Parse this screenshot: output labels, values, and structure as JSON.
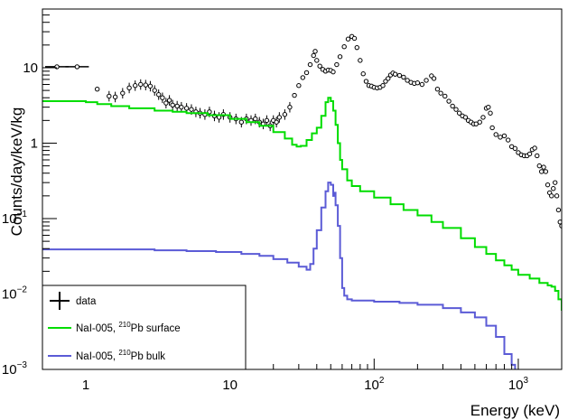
{
  "chart_data": {
    "type": "line",
    "title": "",
    "xlabel": "Energy (keV)",
    "ylabel": "Counts/day/keV/kg",
    "x_scale": "log",
    "y_scale": "log",
    "xlim": [
      0.5,
      2000
    ],
    "ylim": [
      0.001,
      60
    ],
    "x_ticks": [
      {
        "value": 1,
        "base": "1",
        "exp": ""
      },
      {
        "value": 10,
        "base": "10",
        "exp": ""
      },
      {
        "value": 100,
        "base": "10",
        "exp": "2"
      },
      {
        "value": 1000,
        "base": "10",
        "exp": "3"
      }
    ],
    "y_ticks": [
      {
        "value": 0.001,
        "base": "10",
        "exp": "−3"
      },
      {
        "value": 0.01,
        "base": "10",
        "exp": "−2"
      },
      {
        "value": 0.1,
        "base": "10",
        "exp": "−1"
      },
      {
        "value": 1,
        "base": "1",
        "exp": ""
      },
      {
        "value": 10,
        "base": "10",
        "exp": ""
      }
    ],
    "grid": false,
    "legend_position": "bottom-left",
    "legend": [
      {
        "key": "data",
        "pre": "data",
        "sup": "",
        "post": ""
      },
      {
        "key": "surface",
        "pre": "NaI-005, ",
        "sup": "210",
        "post": "Pb surface"
      },
      {
        "key": "bulk",
        "pre": "NaI-005, ",
        "sup": "210",
        "post": "Pb bulk"
      }
    ],
    "series": [
      {
        "key": "data",
        "style": "markers",
        "color": "#000000",
        "points": [
          [
            0.63,
            10.3
          ],
          [
            0.87,
            10.3
          ],
          [
            1.2,
            5.2
          ],
          [
            1.45,
            4.2
          ],
          [
            1.6,
            4.1
          ],
          [
            1.8,
            4.6
          ],
          [
            2.0,
            5.4
          ],
          [
            2.2,
            5.8
          ],
          [
            2.4,
            6.0
          ],
          [
            2.6,
            5.9
          ],
          [
            2.8,
            5.7
          ],
          [
            3.0,
            5.0
          ],
          [
            3.2,
            4.4
          ],
          [
            3.4,
            4.0
          ],
          [
            3.6,
            3.4
          ],
          [
            3.8,
            3.7
          ],
          [
            4.0,
            3.2
          ],
          [
            4.3,
            3.1
          ],
          [
            4.6,
            3.0
          ],
          [
            5.0,
            2.9
          ],
          [
            5.4,
            2.8
          ],
          [
            5.8,
            2.6
          ],
          [
            6.2,
            2.5
          ],
          [
            6.7,
            2.4
          ],
          [
            7.2,
            2.6
          ],
          [
            7.8,
            2.3
          ],
          [
            8.4,
            2.2
          ],
          [
            9,
            2.4
          ],
          [
            10,
            2.2
          ],
          [
            11,
            2.1
          ],
          [
            12,
            1.9
          ],
          [
            13,
            2.1
          ],
          [
            14,
            2.0
          ],
          [
            15,
            2.1
          ],
          [
            16,
            1.9
          ],
          [
            17,
            1.8
          ],
          [
            18,
            2.0
          ],
          [
            19,
            1.7
          ],
          [
            20,
            2.0
          ],
          [
            21,
            1.9
          ],
          [
            22,
            2.2
          ],
          [
            24,
            2.4
          ],
          [
            26,
            3.0
          ],
          [
            28,
            4.3
          ],
          [
            30,
            5.8
          ],
          [
            32,
            7.4
          ],
          [
            34,
            8.6
          ],
          [
            36,
            11.0
          ],
          [
            38,
            14.5
          ],
          [
            39,
            16.5
          ],
          [
            40,
            12.5
          ],
          [
            42,
            10.5
          ],
          [
            44,
            9.5
          ],
          [
            46,
            9.0
          ],
          [
            48,
            9.3
          ],
          [
            50,
            9.2
          ],
          [
            52,
            8.8
          ],
          [
            55,
            11.0
          ],
          [
            58,
            14.0
          ],
          [
            62,
            19.0
          ],
          [
            66,
            24.0
          ],
          [
            70,
            26.0
          ],
          [
            73,
            24.5
          ],
          [
            76,
            18.5
          ],
          [
            80,
            12.5
          ],
          [
            84,
            8.3
          ],
          [
            88,
            6.6
          ],
          [
            92,
            5.8
          ],
          [
            96,
            5.7
          ],
          [
            100,
            5.5
          ],
          [
            105,
            5.4
          ],
          [
            110,
            5.5
          ],
          [
            115,
            5.8
          ],
          [
            120,
            6.6
          ],
          [
            125,
            7.2
          ],
          [
            130,
            8.0
          ],
          [
            135,
            8.5
          ],
          [
            140,
            8.2
          ],
          [
            150,
            7.9
          ],
          [
            160,
            7.5
          ],
          [
            170,
            6.8
          ],
          [
            180,
            6.4
          ],
          [
            190,
            6.2
          ],
          [
            200,
            6.3
          ],
          [
            215,
            6.0
          ],
          [
            230,
            6.8
          ],
          [
            250,
            7.8
          ],
          [
            260,
            7.2
          ],
          [
            275,
            5.2
          ],
          [
            290,
            4.6
          ],
          [
            310,
            4.2
          ],
          [
            330,
            3.6
          ],
          [
            350,
            3.1
          ],
          [
            370,
            2.8
          ],
          [
            390,
            2.5
          ],
          [
            410,
            2.3
          ],
          [
            430,
            2.2
          ],
          [
            450,
            2.0
          ],
          [
            470,
            1.9
          ],
          [
            490,
            1.8
          ],
          [
            510,
            1.8
          ],
          [
            540,
            1.9
          ],
          [
            570,
            2.2
          ],
          [
            600,
            2.9
          ],
          [
            620,
            3.0
          ],
          [
            640,
            2.5
          ],
          [
            660,
            1.6
          ],
          [
            700,
            1.3
          ],
          [
            750,
            1.2
          ],
          [
            800,
            1.25
          ],
          [
            850,
            1.1
          ],
          [
            900,
            0.9
          ],
          [
            950,
            0.85
          ],
          [
            1000,
            0.75
          ],
          [
            1050,
            0.7
          ],
          [
            1100,
            0.68
          ],
          [
            1150,
            0.68
          ],
          [
            1200,
            0.72
          ],
          [
            1250,
            0.82
          ],
          [
            1300,
            0.86
          ],
          [
            1350,
            0.68
          ],
          [
            1400,
            0.5
          ],
          [
            1450,
            0.42
          ],
          [
            1500,
            0.48
          ],
          [
            1550,
            0.42
          ],
          [
            1600,
            0.28
          ],
          [
            1650,
            0.22
          ],
          [
            1700,
            0.2
          ],
          [
            1750,
            0.25
          ],
          [
            1800,
            0.3
          ],
          [
            1850,
            0.2
          ],
          [
            1900,
            0.13
          ],
          [
            1950,
            0.09
          ],
          [
            2000,
            0.08
          ]
        ]
      },
      {
        "key": "surface",
        "style": "step",
        "color": "#00dd00",
        "points": [
          [
            0.5,
            3.6
          ],
          [
            0.8,
            3.6
          ],
          [
            1.0,
            3.5
          ],
          [
            1.2,
            3.3
          ],
          [
            1.5,
            3.1
          ],
          [
            2,
            2.9
          ],
          [
            3,
            2.7
          ],
          [
            4,
            2.6
          ],
          [
            5,
            2.5
          ],
          [
            7,
            2.35
          ],
          [
            10,
            2.1
          ],
          [
            13,
            1.9
          ],
          [
            16,
            1.7
          ],
          [
            20,
            1.4
          ],
          [
            24,
            1.15
          ],
          [
            27,
            0.95
          ],
          [
            29,
            0.9
          ],
          [
            31,
            0.92
          ],
          [
            34,
            1.1
          ],
          [
            37,
            1.35
          ],
          [
            40,
            1.6
          ],
          [
            43,
            2.3
          ],
          [
            46,
            3.5
          ],
          [
            48,
            4.0
          ],
          [
            50,
            3.6
          ],
          [
            52,
            2.7
          ],
          [
            54,
            1.75
          ],
          [
            56,
            1.0
          ],
          [
            58,
            0.6
          ],
          [
            60,
            0.45
          ],
          [
            65,
            0.32
          ],
          [
            70,
            0.27
          ],
          [
            80,
            0.23
          ],
          [
            100,
            0.19
          ],
          [
            130,
            0.155
          ],
          [
            160,
            0.13
          ],
          [
            200,
            0.11
          ],
          [
            250,
            0.09
          ],
          [
            300,
            0.075
          ],
          [
            400,
            0.055
          ],
          [
            500,
            0.042
          ],
          [
            600,
            0.034
          ],
          [
            700,
            0.028
          ],
          [
            800,
            0.024
          ],
          [
            900,
            0.021
          ],
          [
            1000,
            0.018
          ],
          [
            1200,
            0.016
          ],
          [
            1400,
            0.014
          ],
          [
            1600,
            0.013
          ],
          [
            1700,
            0.0125
          ],
          [
            1800,
            0.011
          ],
          [
            1900,
            0.0085
          ],
          [
            2000,
            0.006
          ]
        ]
      },
      {
        "key": "bulk",
        "style": "step",
        "color": "#5b5bd6",
        "points": [
          [
            0.5,
            0.039
          ],
          [
            0.8,
            0.039
          ],
          [
            1,
            0.039
          ],
          [
            2,
            0.039
          ],
          [
            3,
            0.038
          ],
          [
            5,
            0.037
          ],
          [
            8,
            0.036
          ],
          [
            12,
            0.034
          ],
          [
            16,
            0.032
          ],
          [
            20,
            0.029
          ],
          [
            25,
            0.026
          ],
          [
            30,
            0.023
          ],
          [
            34,
            0.021
          ],
          [
            36,
            0.025
          ],
          [
            38,
            0.04
          ],
          [
            40,
            0.07
          ],
          [
            43,
            0.14
          ],
          [
            46,
            0.23
          ],
          [
            48,
            0.3
          ],
          [
            50,
            0.28
          ],
          [
            52,
            0.2
          ],
          [
            53,
            0.22
          ],
          [
            54,
            0.15
          ],
          [
            56,
            0.08
          ],
          [
            58,
            0.03
          ],
          [
            60,
            0.012
          ],
          [
            62,
            0.0095
          ],
          [
            65,
            0.0085
          ],
          [
            70,
            0.0082
          ],
          [
            80,
            0.0082
          ],
          [
            100,
            0.0079
          ],
          [
            150,
            0.0076
          ],
          [
            200,
            0.0072
          ],
          [
            300,
            0.0065
          ],
          [
            400,
            0.0057
          ],
          [
            500,
            0.0049
          ],
          [
            600,
            0.0038
          ],
          [
            700,
            0.0027
          ],
          [
            800,
            0.0016
          ],
          [
            900,
            0.00115
          ],
          [
            950,
            0.001
          ]
        ]
      }
    ]
  }
}
